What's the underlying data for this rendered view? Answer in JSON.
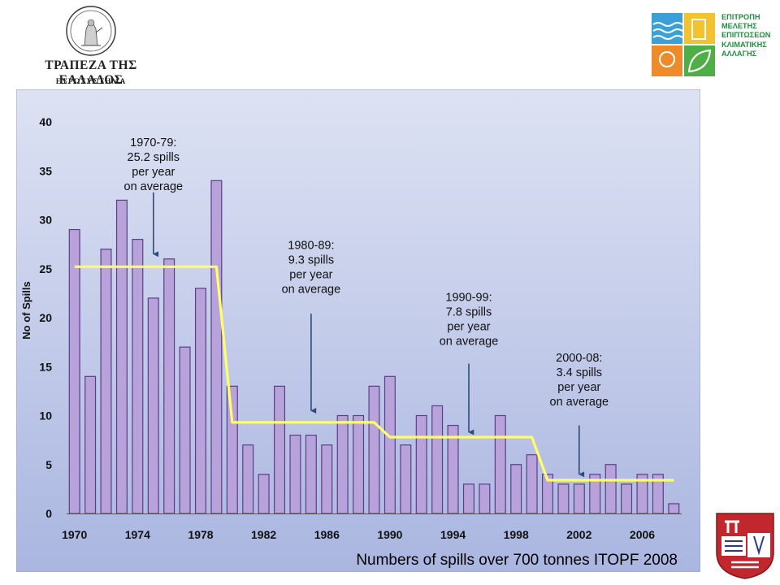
{
  "header": {
    "bank_name": "ΤΡΑΠΕΖΑ ΤΗΣ ΕΛΛΑΔΟΣ",
    "bank_subtitle": "ΕΥΡΩΣΥΣΤΗΜΑ",
    "committee_lines": [
      "ΕΠΙΤΡΟΠΗ",
      "ΜΕΛΕΤΗΣ",
      "ΕΠΙΠΤΩΣΕΩΝ",
      "ΚΛΙΜΑΤΙΚΗΣ",
      "ΑΛΛΑΓΗΣ"
    ]
  },
  "colors": {
    "bar_fill": "#b7a3d9",
    "bar_stroke": "#5b3d8a",
    "average_line": "#ffff66",
    "plot_bg_top": "#dde2f3",
    "plot_bg_bottom": "#aab6e0",
    "committee_green": "#1e8f3e",
    "arrow": "#2d4a7a"
  },
  "chart_data": {
    "type": "bar",
    "title": "",
    "ylabel": "No of Spills",
    "xlabel": "",
    "ylim": [
      0,
      40
    ],
    "yticks": [
      0,
      5,
      10,
      15,
      20,
      25,
      30,
      35,
      40
    ],
    "x_tick_labels": [
      "1970",
      "1974",
      "1978",
      "1982",
      "1986",
      "1990",
      "1994",
      "1998",
      "2002",
      "2006"
    ],
    "categories": [
      1970,
      1971,
      1972,
      1973,
      1974,
      1975,
      1976,
      1977,
      1978,
      1979,
      1980,
      1981,
      1982,
      1983,
      1984,
      1985,
      1986,
      1987,
      1988,
      1989,
      1990,
      1991,
      1992,
      1993,
      1994,
      1995,
      1996,
      1997,
      1998,
      1999,
      2000,
      2001,
      2002,
      2003,
      2004,
      2005,
      2006,
      2007,
      2008
    ],
    "values": [
      29,
      14,
      27,
      32,
      28,
      22,
      26,
      17,
      23,
      34,
      13,
      7,
      4,
      13,
      8,
      8,
      7,
      10,
      10,
      13,
      14,
      7,
      10,
      11,
      9,
      3,
      3,
      10,
      5,
      6,
      4,
      3,
      3,
      4,
      5,
      3,
      4,
      4,
      1
    ],
    "averages": [
      {
        "period": "1970-79",
        "from": 1970,
        "to": 1979,
        "value": 25.2
      },
      {
        "period": "1980-89",
        "from": 1980,
        "to": 1989,
        "value": 9.3
      },
      {
        "period": "1990-99",
        "from": 1990,
        "to": 1999,
        "value": 7.8
      },
      {
        "period": "2000-08",
        "from": 2000,
        "to": 2008,
        "value": 3.4
      }
    ],
    "annotations": [
      {
        "lines": [
          "1970-79:",
          "25.2 spills",
          "per year",
          "on average"
        ],
        "year": 1975,
        "text_y": 37.5,
        "arrow_from": 32.8,
        "arrow_to": 26.5
      },
      {
        "lines": [
          "1980-89:",
          "9.3 spills",
          "per year",
          "on average"
        ],
        "year": 1985,
        "text_y": 27.0,
        "arrow_from": 20.4,
        "arrow_to": 10.5
      },
      {
        "lines": [
          "1990-99:",
          "7.8 spills",
          "per year",
          "on average"
        ],
        "year": 1995,
        "text_y": 21.7,
        "arrow_from": 15.3,
        "arrow_to": 8.3
      },
      {
        "lines": [
          "2000-08:",
          "3.4 spills",
          "per year",
          "on average"
        ],
        "year": 2002,
        "text_y": 15.5,
        "arrow_from": 9.0,
        "arrow_to": 4.0
      }
    ],
    "source": "Numbers of spills over 700 tonnes ITOPF 2008",
    "grid": false
  }
}
